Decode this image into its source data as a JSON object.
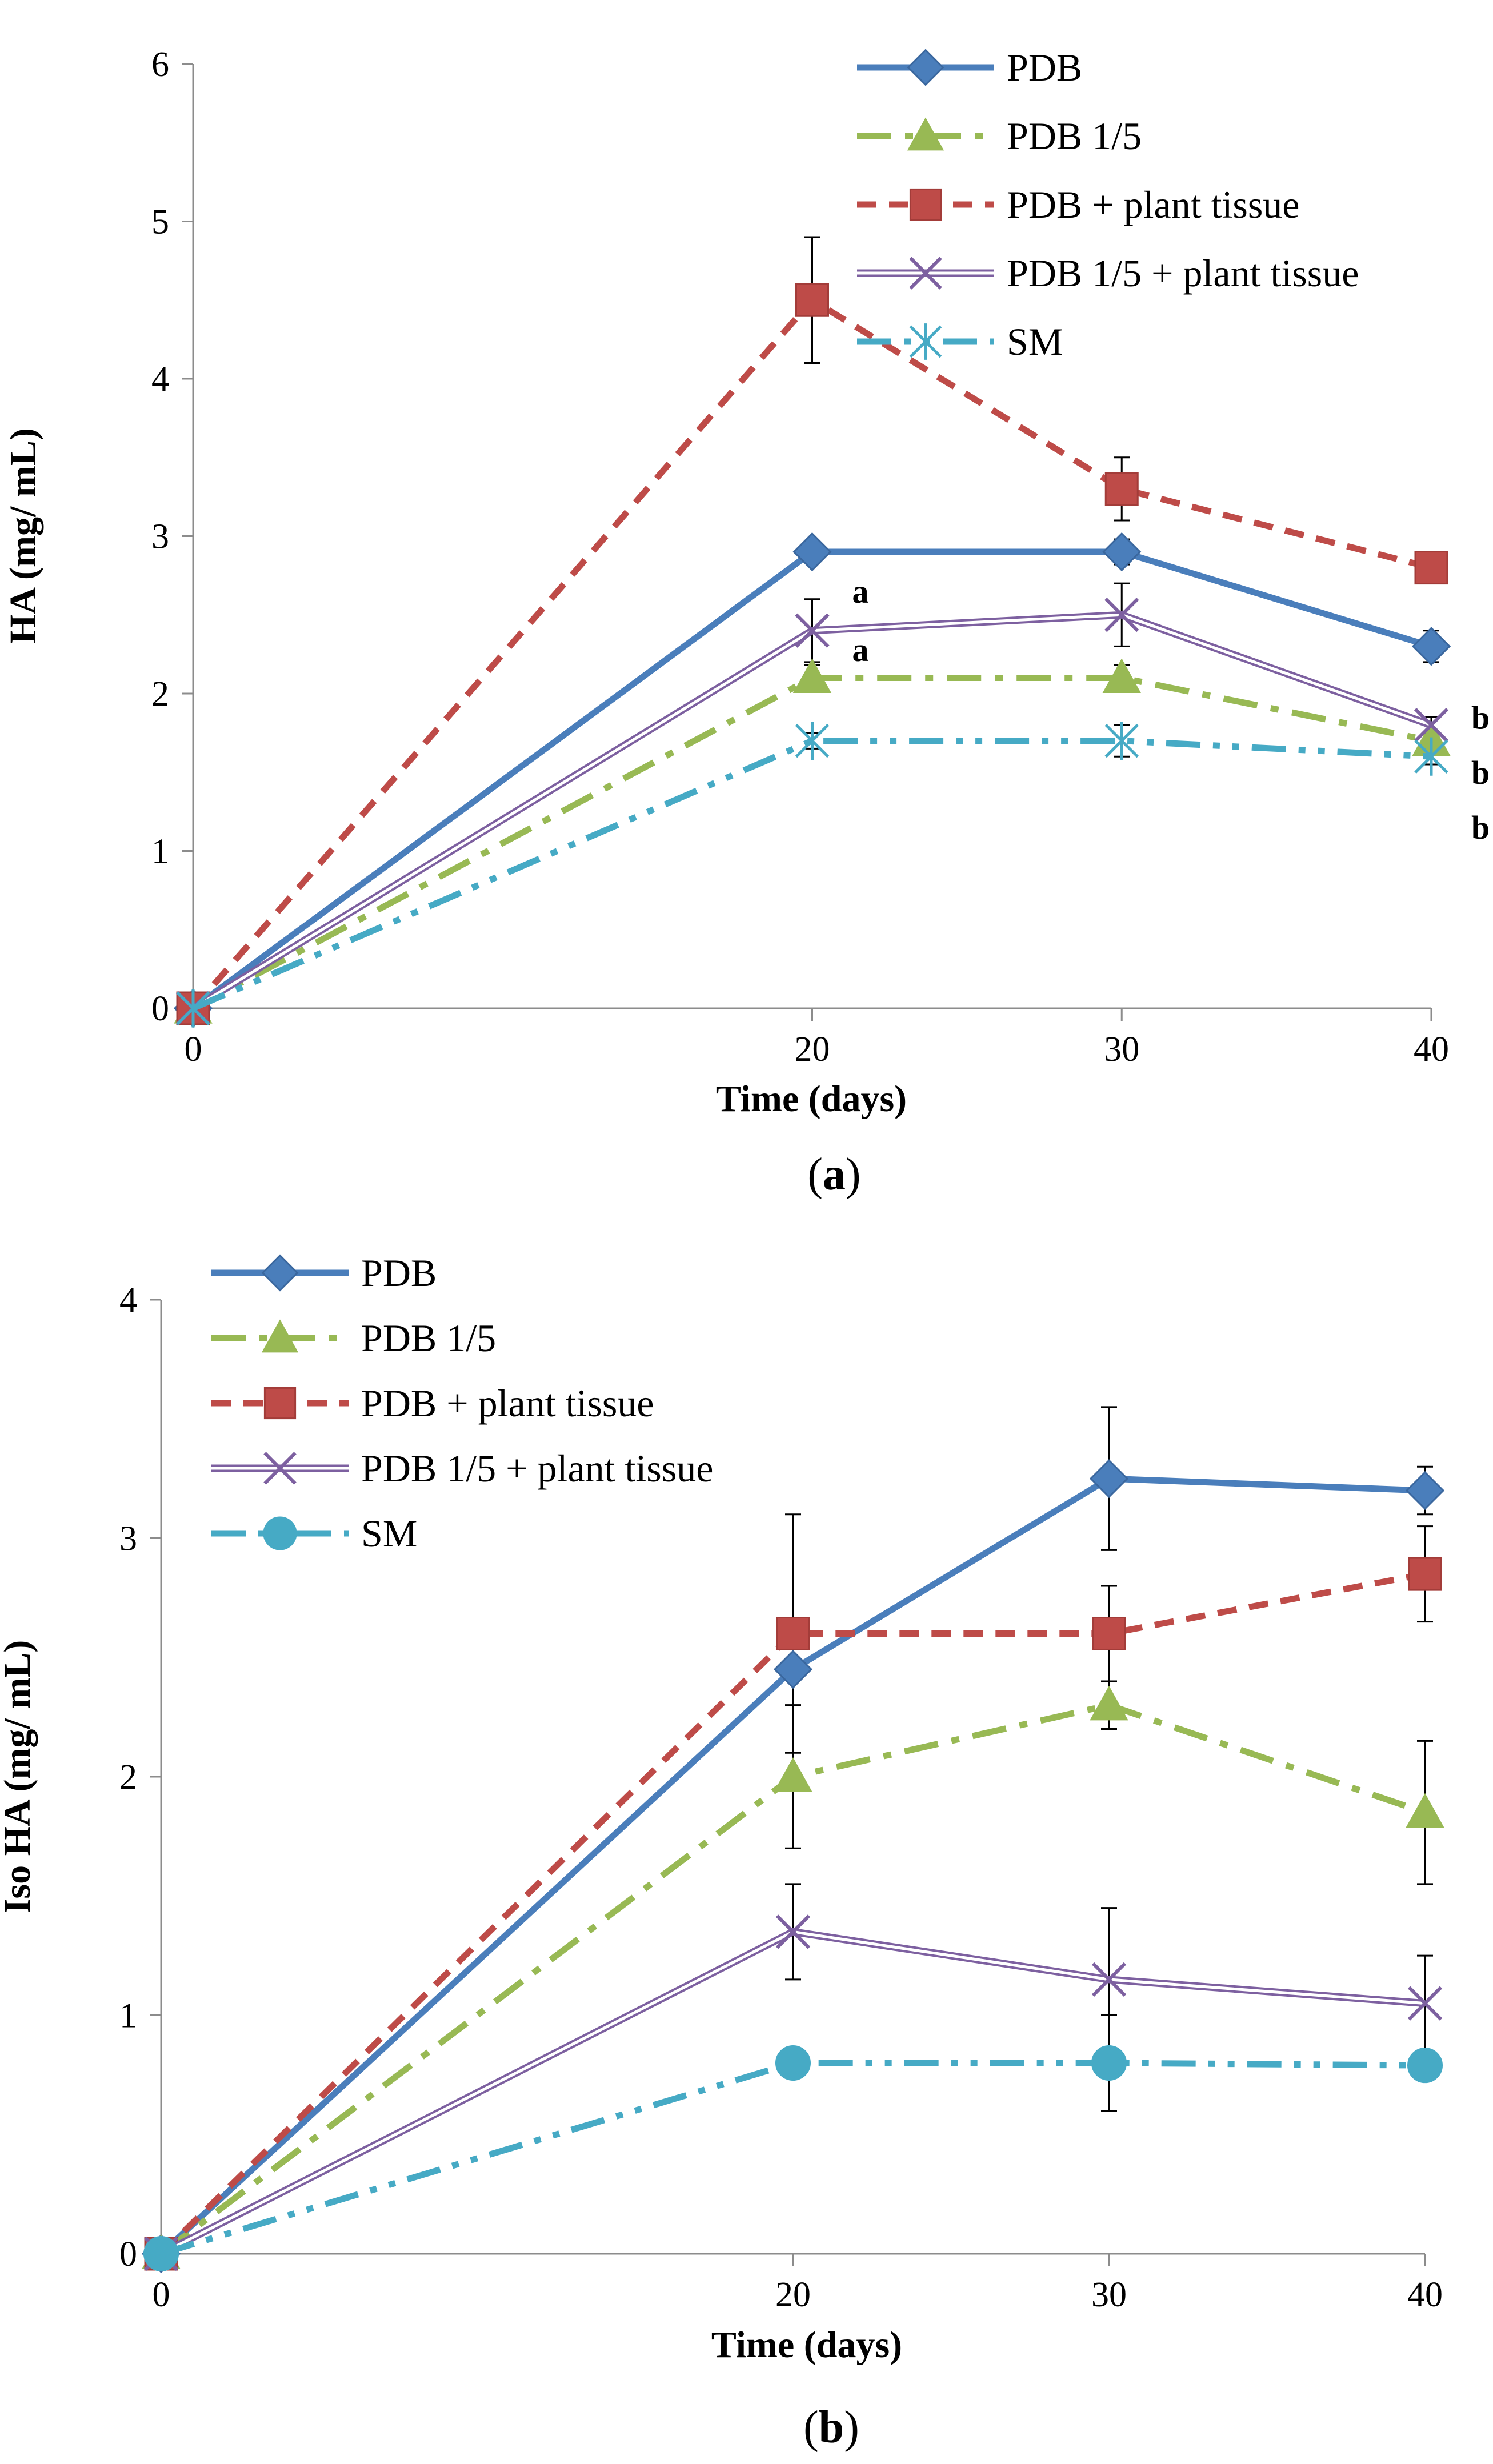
{
  "chart_data": [
    {
      "type": "line",
      "panel": "a",
      "caption_letter": "a",
      "xlabel": "Time (days)",
      "ylabel": "HA (mg/ mL)",
      "x": [
        0,
        20,
        30,
        40
      ],
      "x_ticks": [
        0,
        20,
        30,
        40
      ],
      "xlim": [
        0,
        40
      ],
      "ylim": [
        0,
        6
      ],
      "y_ticks": [
        0,
        1,
        2,
        3,
        4,
        5,
        6
      ],
      "legend_position": "top-right",
      "series": [
        {
          "name": "PDB",
          "color": "#4a7ebb",
          "marker": "diamond",
          "dash": "solid",
          "values": [
            0,
            2.9,
            2.9,
            2.3
          ],
          "errors": [
            0,
            0.05,
            0.08,
            0.1
          ]
        },
        {
          "name": "PDB 1/5",
          "color": "#98b954",
          "marker": "triangle",
          "dash": "dashdot",
          "values": [
            0,
            2.1,
            2.1,
            1.7
          ],
          "errors": [
            0,
            0.08,
            0.08,
            0.05
          ]
        },
        {
          "name": "PDB + plant tissue",
          "color": "#be4b48",
          "marker": "square",
          "dash": "dash",
          "values": [
            0,
            4.5,
            3.3,
            2.8
          ],
          "errors": [
            0,
            0.4,
            0.2,
            0.05
          ]
        },
        {
          "name": "PDB 1/5 + plant tissue",
          "color": "#7d60a0",
          "marker": "x",
          "dash": "double",
          "values": [
            0,
            2.4,
            2.5,
            1.8
          ],
          "errors": [
            0,
            0.2,
            0.2,
            0.05
          ]
        },
        {
          "name": "SM",
          "color": "#46aac5",
          "marker": "star",
          "dash": "dashdotdot",
          "values": [
            0,
            1.7,
            1.7,
            1.6
          ],
          "errors": [
            0,
            0.05,
            0.1,
            0.05
          ]
        }
      ],
      "annotations": [
        {
          "text": "a",
          "x": 20,
          "y": 2.65
        },
        {
          "text": "a",
          "x": 20,
          "y": 2.28
        },
        {
          "text": "b",
          "x": 40,
          "y": 1.85
        },
        {
          "text": "b",
          "x": 40,
          "y": 1.5
        },
        {
          "text": "b",
          "x": 40,
          "y": 1.15
        }
      ]
    },
    {
      "type": "line",
      "panel": "b",
      "caption_letter": "b",
      "xlabel": "Time (days)",
      "ylabel": "Iso HA (mg/ mL)",
      "x": [
        0,
        20,
        30,
        40
      ],
      "x_ticks": [
        0,
        20,
        30,
        40
      ],
      "xlim": [
        0,
        40
      ],
      "ylim": [
        0,
        4
      ],
      "y_ticks": [
        0,
        1,
        2,
        3,
        4
      ],
      "legend_position": "top-left",
      "series": [
        {
          "name": "PDB",
          "color": "#4a7ebb",
          "marker": "diamond",
          "dash": "solid",
          "values": [
            0,
            2.45,
            3.25,
            3.2
          ],
          "errors": [
            0,
            0.15,
            0.3,
            0.1
          ]
        },
        {
          "name": "PDB 1/5",
          "color": "#98b954",
          "marker": "triangle",
          "dash": "dashdot",
          "values": [
            0,
            2.0,
            2.3,
            1.85
          ],
          "errors": [
            0,
            0.3,
            0.1,
            0.3
          ]
        },
        {
          "name": "PDB + plant tissue",
          "color": "#be4b48",
          "marker": "square",
          "dash": "dash",
          "values": [
            0,
            2.6,
            2.6,
            2.85
          ],
          "errors": [
            0,
            0.5,
            0.2,
            0.2
          ]
        },
        {
          "name": "PDB 1/5 + plant tissue",
          "color": "#7d60a0",
          "marker": "x",
          "dash": "double",
          "values": [
            0,
            1.35,
            1.15,
            1.05
          ],
          "errors": [
            0,
            0.2,
            0.3,
            0.2
          ]
        },
        {
          "name": "SM",
          "color": "#46aac5",
          "marker": "circle",
          "dash": "dashdotdot",
          "values": [
            0,
            0.8,
            0.8,
            0.79
          ],
          "errors": [
            0,
            0.05,
            0.2,
            0.05
          ]
        }
      ],
      "annotations": []
    }
  ]
}
